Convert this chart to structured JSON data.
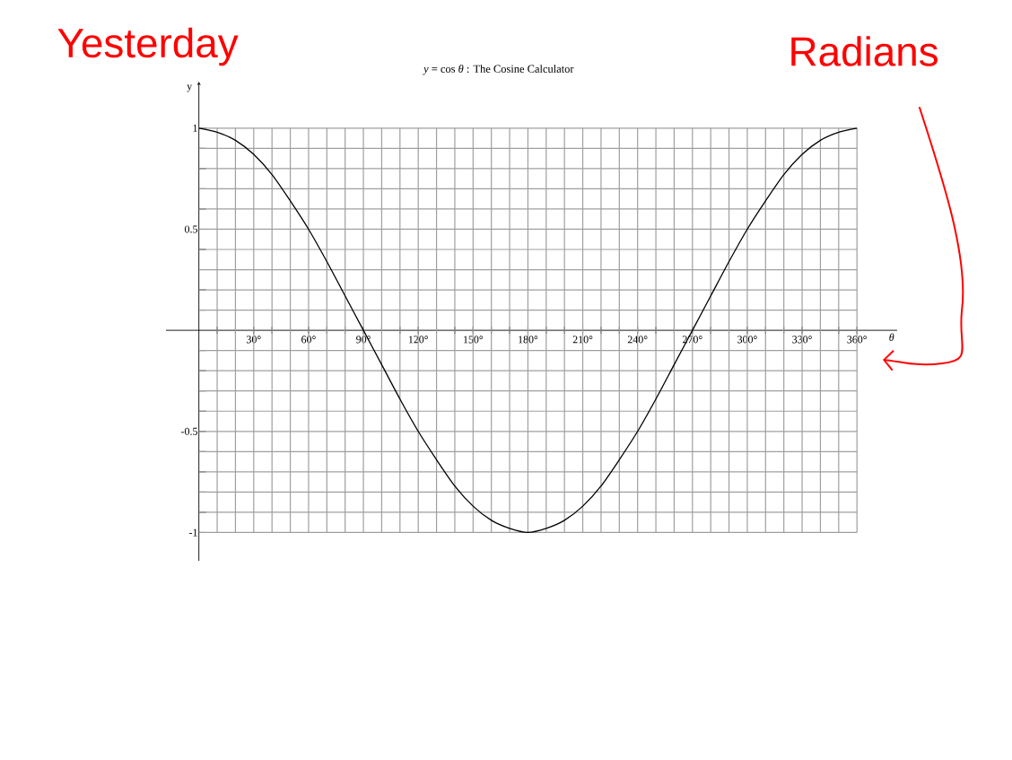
{
  "chart_data": {
    "type": "line",
    "title": "*y* = cos *θ* : The Cosine Calculator",
    "xlabel": "*θ*",
    "ylabel": "y",
    "annotations": [
      "Yesterday",
      "Radians"
    ],
    "x": [
      0,
      10,
      20,
      30,
      40,
      50,
      60,
      70,
      80,
      90,
      100,
      110,
      120,
      130,
      140,
      150,
      160,
      170,
      180,
      190,
      200,
      210,
      220,
      230,
      240,
      250,
      260,
      270,
      280,
      290,
      300,
      310,
      320,
      330,
      340,
      350,
      360
    ],
    "values": [
      1,
      0.98,
      0.94,
      0.87,
      0.77,
      0.64,
      0.5,
      0.34,
      0.17,
      0,
      -0.17,
      -0.34,
      -0.5,
      -0.64,
      -0.77,
      -0.87,
      -0.94,
      -0.98,
      -1,
      -0.98,
      -0.94,
      -0.87,
      -0.77,
      -0.64,
      -0.5,
      -0.34,
      -0.17,
      0,
      0.17,
      0.34,
      0.5,
      0.64,
      0.77,
      0.87,
      0.94,
      0.98,
      1
    ],
    "color": "#000000",
    "marker": "none",
    "line_style": "solid",
    "grid": true,
    "xlim": [
      -18,
      382
    ],
    "ylim": [
      -1.14,
      1.23
    ],
    "xticks": [
      {
        "value": 10,
        "label": null
      },
      {
        "value": 20,
        "label": null
      },
      {
        "value": 30,
        "label": "30°"
      },
      {
        "value": 40,
        "label": null
      },
      {
        "value": 50,
        "label": null
      },
      {
        "value": 60,
        "label": "60°"
      },
      {
        "value": 70,
        "label": null
      },
      {
        "value": 80,
        "label": null
      },
      {
        "value": 90,
        "label": "90°"
      },
      {
        "value": 100,
        "label": null
      },
      {
        "value": 110,
        "label": null
      },
      {
        "value": 120,
        "label": "120°"
      },
      {
        "value": 130,
        "label": null
      },
      {
        "value": 140,
        "label": null
      },
      {
        "value": 150,
        "label": "150°"
      },
      {
        "value": 160,
        "label": null
      },
      {
        "value": 170,
        "label": null
      },
      {
        "value": 180,
        "label": "180°"
      },
      {
        "value": 190,
        "label": null
      },
      {
        "value": 200,
        "label": null
      },
      {
        "value": 210,
        "label": "210°"
      },
      {
        "value": 220,
        "label": null
      },
      {
        "value": 230,
        "label": null
      },
      {
        "value": 240,
        "label": "240°"
      },
      {
        "value": 250,
        "label": null
      },
      {
        "value": 260,
        "label": null
      },
      {
        "value": 270,
        "label": "270°"
      },
      {
        "value": 280,
        "label": null
      },
      {
        "value": 290,
        "label": null
      },
      {
        "value": 300,
        "label": "300°"
      },
      {
        "value": 310,
        "label": null
      },
      {
        "value": 320,
        "label": null
      },
      {
        "value": 330,
        "label": "330°"
      },
      {
        "value": 340,
        "label": null
      },
      {
        "value": 350,
        "label": null
      },
      {
        "value": 360,
        "label": "360°"
      }
    ],
    "yticks": [
      -1,
      {
        "value": -0.9,
        "label": null
      },
      {
        "value": -0.8,
        "label": null
      },
      {
        "value": -0.7,
        "label": null
      },
      {
        "value": -0.6,
        "label": null
      },
      -0.5,
      {
        "value": -0.4,
        "label": null
      },
      {
        "value": -0.3,
        "label": null
      },
      {
        "value": -0.2,
        "label": null
      },
      {
        "value": -0.1,
        "label": null
      },
      {
        "value": 0.1,
        "label": null
      },
      {
        "value": 0.2,
        "label": null
      },
      {
        "value": 0.3,
        "label": null
      },
      {
        "value": 0.4,
        "label": null
      },
      0.5,
      {
        "value": 0.6,
        "label": null
      },
      {
        "value": 0.7,
        "label": null
      },
      {
        "value": 0.8,
        "label": null
      },
      {
        "value": 0.9,
        "label": null
      },
      1
    ]
  }
}
